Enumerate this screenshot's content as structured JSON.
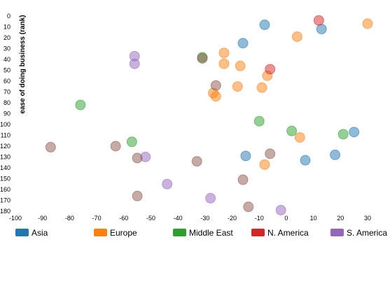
{
  "chart_data": {
    "type": "scatter",
    "ylabel": "ease of doing business (rank)",
    "xlabel": "",
    "xlim": [
      -100,
      30
    ],
    "ylim": [
      -5,
      182
    ],
    "y_inverted": true,
    "x_ticks": [
      -100,
      -90,
      -80,
      -70,
      -60,
      -50,
      -40,
      -30,
      -20,
      -10,
      0,
      10,
      20,
      30
    ],
    "y_ticks": [
      0,
      10,
      20,
      30,
      40,
      50,
      60,
      70,
      80,
      90,
      100,
      110,
      120,
      130,
      140,
      150,
      160,
      170,
      180
    ],
    "grid": false,
    "legend_position": "bottom",
    "series": [
      {
        "name": "Asia",
        "color": "#1f77b4",
        "points": [
          {
            "x": -8,
            "y": 8
          },
          {
            "x": 13,
            "y": 12
          },
          {
            "x": -16,
            "y": 25
          },
          {
            "x": 25,
            "y": 107
          },
          {
            "x": 18,
            "y": 128
          },
          {
            "x": 7,
            "y": 133
          },
          {
            "x": -15,
            "y": 129
          }
        ]
      },
      {
        "name": "Europe",
        "color": "#ff7f0e",
        "points": [
          {
            "x": 30,
            "y": 7
          },
          {
            "x": 4,
            "y": 19
          },
          {
            "x": -23,
            "y": 34
          },
          {
            "x": -23,
            "y": 44
          },
          {
            "x": -17,
            "y": 46
          },
          {
            "x": -7,
            "y": 55
          },
          {
            "x": -18,
            "y": 65
          },
          {
            "x": -9,
            "y": 66
          },
          {
            "x": -27,
            "y": 71
          },
          {
            "x": -26,
            "y": 74
          },
          {
            "x": 5,
            "y": 112
          },
          {
            "x": -8,
            "y": 137
          }
        ]
      },
      {
        "name": "Middle East",
        "color": "#2ca02c",
        "points": [
          {
            "x": -31,
            "y": 38
          },
          {
            "x": -76,
            "y": 82
          },
          {
            "x": -10,
            "y": 97
          },
          {
            "x": 2,
            "y": 106
          },
          {
            "x": 21,
            "y": 109
          },
          {
            "x": -57,
            "y": 116
          }
        ]
      },
      {
        "name": "N. America",
        "color": "#d62728",
        "points": [
          {
            "x": 12,
            "y": 4
          },
          {
            "x": -6,
            "y": 49
          }
        ]
      },
      {
        "name": "S. America",
        "color": "#9467bd",
        "points": [
          {
            "x": -56,
            "y": 37
          },
          {
            "x": -56,
            "y": 44
          },
          {
            "x": -52,
            "y": 130
          },
          {
            "x": -44,
            "y": 155
          },
          {
            "x": -28,
            "y": 168
          },
          {
            "x": -2,
            "y": 179
          }
        ]
      },
      {
        "name": "",
        "color": "#8c564b",
        "points": [
          {
            "x": -31,
            "y": 39
          },
          {
            "x": -26,
            "y": 64
          },
          {
            "x": -87,
            "y": 121
          },
          {
            "x": -63,
            "y": 120
          },
          {
            "x": -55,
            "y": 131
          },
          {
            "x": -33,
            "y": 134
          },
          {
            "x": -6,
            "y": 127
          },
          {
            "x": -16,
            "y": 151
          },
          {
            "x": -55,
            "y": 166
          },
          {
            "x": -14,
            "y": 176
          }
        ]
      }
    ]
  }
}
